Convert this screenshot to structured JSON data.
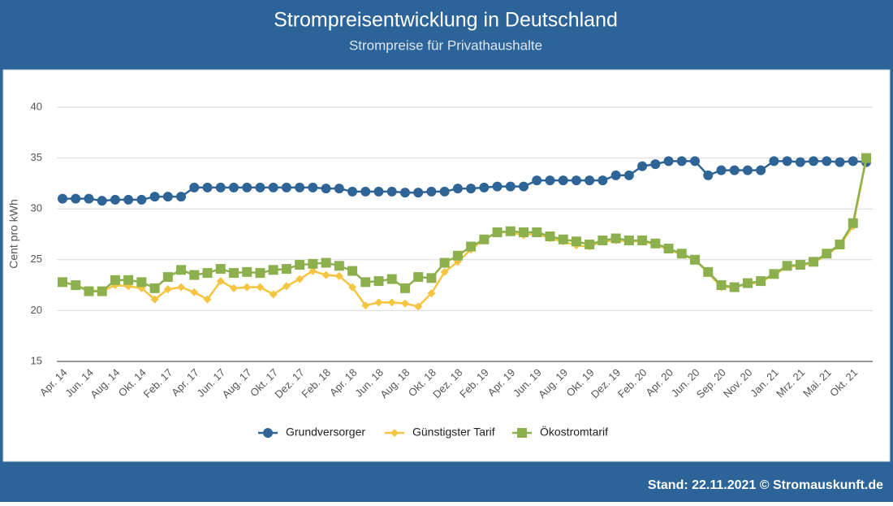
{
  "chart_data": {
    "type": "line",
    "title": "Strompreisentwicklung in Deutschland",
    "subtitle": "Strompreise für Privathaushalte",
    "y_label": "Cent pro kWh",
    "footer": "Stand: 22.11.2021 © Stromauskunft.de",
    "categories": [
      "Apr. 14",
      null,
      "Jun. 14",
      null,
      "Aug. 14",
      null,
      "Okt. 14",
      null,
      "Feb. 17",
      null,
      "Apr. 17",
      null,
      "Jun. 17",
      null,
      "Aug. 17",
      null,
      "Okt. 17",
      null,
      "Dez. 17",
      null,
      "Feb. 18",
      null,
      "Apr. 18",
      null,
      "Jun. 18",
      null,
      "Aug. 18",
      null,
      "Okt. 18",
      null,
      "Dez. 18",
      null,
      "Feb. 19",
      null,
      "Apr. 19",
      null,
      "Jun. 19",
      null,
      "Aug. 19",
      null,
      "Okt. 19",
      null,
      "Dez. 19",
      null,
      "Feb. 20",
      null,
      "Apr. 20",
      null,
      "Jun. 20",
      null,
      "Sep. 20",
      null,
      "Nov. 20",
      null,
      "Jan. 21",
      null,
      "Mrz. 21",
      null,
      "Mai. 21",
      null,
      "Okt. 21",
      null
    ],
    "series": [
      {
        "name": "Grundversorger",
        "color": "#2f6496",
        "marker": "circle",
        "values": [
          31.0,
          31.0,
          31.0,
          30.8,
          30.9,
          30.9,
          30.9,
          31.2,
          31.2,
          31.2,
          32.1,
          32.1,
          32.1,
          32.1,
          32.1,
          32.1,
          32.1,
          32.1,
          32.1,
          32.1,
          32.0,
          32.0,
          31.7,
          31.7,
          31.7,
          31.7,
          31.6,
          31.6,
          31.7,
          31.7,
          32.0,
          32.0,
          32.1,
          32.2,
          32.2,
          32.2,
          32.8,
          32.8,
          32.8,
          32.8,
          32.8,
          32.8,
          33.3,
          33.3,
          34.2,
          34.4,
          34.7,
          34.7,
          34.7,
          33.3,
          33.8,
          33.8,
          33.8,
          33.8,
          34.7,
          34.7,
          34.6,
          34.7,
          34.7,
          34.6,
          34.7,
          34.6
        ]
      },
      {
        "name": "Günstigster Tarif",
        "color": "#f5c542",
        "marker": "diamond",
        "values": [
          22.8,
          22.5,
          22.0,
          21.9,
          22.5,
          22.4,
          22.2,
          21.1,
          22.1,
          22.3,
          21.8,
          21.1,
          22.9,
          22.2,
          22.3,
          22.3,
          21.6,
          22.4,
          23.1,
          23.9,
          23.5,
          23.4,
          22.3,
          20.5,
          20.8,
          20.8,
          20.7,
          20.4,
          21.7,
          23.8,
          24.8,
          26.0,
          27.0,
          27.7,
          27.7,
          27.4,
          27.6,
          27.1,
          26.8,
          26.4,
          26.3,
          26.8,
          26.9,
          26.8,
          26.8,
          26.5,
          26.0,
          25.5,
          25.0,
          23.7,
          22.3,
          22.3,
          22.6,
          22.8,
          23.5,
          24.3,
          24.4,
          24.7,
          25.5,
          26.4,
          28.3,
          34.9
        ]
      },
      {
        "name": "Ökostromtarif",
        "color": "#8db04e",
        "marker": "square",
        "values": [
          22.8,
          22.5,
          21.9,
          21.9,
          23.0,
          23.0,
          22.8,
          22.2,
          23.3,
          24.0,
          23.5,
          23.7,
          24.1,
          23.7,
          23.8,
          23.7,
          24.0,
          24.1,
          24.5,
          24.6,
          24.7,
          24.4,
          23.9,
          22.8,
          22.9,
          23.1,
          22.2,
          23.3,
          23.2,
          24.7,
          25.4,
          26.3,
          27.0,
          27.7,
          27.8,
          27.7,
          27.7,
          27.3,
          27.0,
          26.8,
          26.5,
          26.9,
          27.1,
          26.9,
          26.9,
          26.6,
          26.1,
          25.6,
          25.0,
          23.8,
          22.5,
          22.3,
          22.7,
          22.9,
          23.6,
          24.4,
          24.5,
          24.8,
          25.6,
          26.5,
          28.6,
          35.0
        ]
      }
    ],
    "ylim": [
      15,
      40
    ],
    "yticks": [
      15,
      20,
      25,
      30,
      35,
      40
    ],
    "grid": true,
    "legend": "bottom"
  }
}
